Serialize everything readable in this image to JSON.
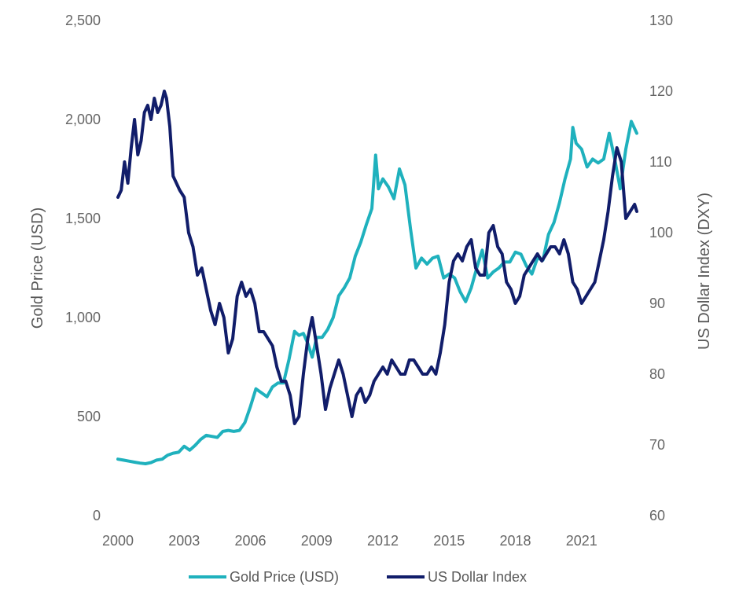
{
  "chart_data": {
    "type": "line",
    "title": "",
    "xlabel": "",
    "ylabel": "Gold Price (USD)",
    "y2label": "US Dollar Index (DXY)",
    "xlim": [
      2000,
      2023.5
    ],
    "ylim": [
      0,
      2500
    ],
    "y2lim": [
      60,
      130
    ],
    "x_ticks": [
      2000,
      2003,
      2006,
      2009,
      2012,
      2015,
      2018,
      2021
    ],
    "x_tick_labels": [
      "2000",
      "2003",
      "2006",
      "2009",
      "2012",
      "2015",
      "2018",
      "2021"
    ],
    "y_ticks": [
      0,
      500,
      1000,
      1500,
      2000,
      2500
    ],
    "y_tick_labels": [
      "0",
      "500",
      "1,000",
      "1,500",
      "2,000",
      "2,500"
    ],
    "y2_ticks": [
      60,
      70,
      80,
      90,
      100,
      110,
      120,
      130
    ],
    "y2_tick_labels": [
      "60",
      "70",
      "80",
      "90",
      "100",
      "110",
      "120",
      "130"
    ],
    "grid": false,
    "legend_position": "bottom",
    "series": [
      {
        "name": "Gold Price (USD)",
        "axis": "left",
        "color": "#1fb1bd",
        "x": [
          2000.0,
          2000.25,
          2000.5,
          2000.75,
          2001.0,
          2001.25,
          2001.5,
          2001.75,
          2002.0,
          2002.25,
          2002.5,
          2002.75,
          2003.0,
          2003.25,
          2003.5,
          2003.75,
          2004.0,
          2004.25,
          2004.5,
          2004.75,
          2005.0,
          2005.25,
          2005.5,
          2005.75,
          2006.0,
          2006.25,
          2006.5,
          2006.75,
          2007.0,
          2007.25,
          2007.5,
          2007.75,
          2008.0,
          2008.2,
          2008.4,
          2008.6,
          2008.8,
          2009.0,
          2009.25,
          2009.5,
          2009.75,
          2010.0,
          2010.25,
          2010.5,
          2010.75,
          2011.0,
          2011.25,
          2011.5,
          2011.67,
          2011.8,
          2012.0,
          2012.25,
          2012.5,
          2012.75,
          2013.0,
          2013.25,
          2013.5,
          2013.75,
          2014.0,
          2014.25,
          2014.5,
          2014.75,
          2015.0,
          2015.25,
          2015.5,
          2015.75,
          2016.0,
          2016.25,
          2016.5,
          2016.75,
          2017.0,
          2017.25,
          2017.5,
          2017.75,
          2018.0,
          2018.25,
          2018.5,
          2018.75,
          2019.0,
          2019.25,
          2019.5,
          2019.75,
          2020.0,
          2020.25,
          2020.5,
          2020.6,
          2020.75,
          2021.0,
          2021.25,
          2021.5,
          2021.75,
          2022.0,
          2022.25,
          2022.5,
          2022.75,
          2023.0,
          2023.25,
          2023.5
        ],
        "values": [
          285,
          280,
          275,
          270,
          265,
          262,
          268,
          280,
          285,
          305,
          315,
          320,
          350,
          330,
          355,
          385,
          405,
          400,
          395,
          425,
          430,
          425,
          430,
          470,
          550,
          640,
          620,
          600,
          650,
          670,
          670,
          790,
          930,
          910,
          920,
          870,
          800,
          900,
          900,
          940,
          1000,
          1110,
          1150,
          1200,
          1310,
          1380,
          1470,
          1550,
          1820,
          1650,
          1700,
          1660,
          1600,
          1750,
          1670,
          1450,
          1250,
          1300,
          1270,
          1300,
          1310,
          1200,
          1220,
          1200,
          1130,
          1080,
          1150,
          1250,
          1340,
          1200,
          1230,
          1250,
          1280,
          1280,
          1330,
          1320,
          1260,
          1220,
          1300,
          1290,
          1420,
          1480,
          1580,
          1700,
          1800,
          1960,
          1880,
          1850,
          1760,
          1800,
          1780,
          1800,
          1930,
          1800,
          1650,
          1850,
          1990,
          1930
        ]
      },
      {
        "name": "US Dollar Index",
        "axis": "right",
        "color": "#111d6a",
        "x": [
          2000.0,
          2000.15,
          2000.3,
          2000.45,
          2000.6,
          2000.75,
          2000.9,
          2001.05,
          2001.2,
          2001.35,
          2001.5,
          2001.65,
          2001.8,
          2001.95,
          2002.1,
          2002.2,
          2002.35,
          2002.5,
          2002.65,
          2002.8,
          2003.0,
          2003.2,
          2003.4,
          2003.6,
          2003.8,
          2004.0,
          2004.2,
          2004.4,
          2004.6,
          2004.8,
          2005.0,
          2005.2,
          2005.4,
          2005.6,
          2005.8,
          2006.0,
          2006.2,
          2006.4,
          2006.6,
          2006.8,
          2007.0,
          2007.2,
          2007.4,
          2007.6,
          2007.8,
          2008.0,
          2008.2,
          2008.4,
          2008.6,
          2008.8,
          2009.0,
          2009.2,
          2009.4,
          2009.6,
          2009.8,
          2010.0,
          2010.2,
          2010.4,
          2010.6,
          2010.8,
          2011.0,
          2011.2,
          2011.4,
          2011.6,
          2011.8,
          2012.0,
          2012.2,
          2012.4,
          2012.6,
          2012.8,
          2013.0,
          2013.2,
          2013.4,
          2013.6,
          2013.8,
          2014.0,
          2014.2,
          2014.4,
          2014.6,
          2014.8,
          2015.0,
          2015.2,
          2015.4,
          2015.6,
          2015.8,
          2016.0,
          2016.2,
          2016.4,
          2016.6,
          2016.8,
          2017.0,
          2017.2,
          2017.4,
          2017.6,
          2017.8,
          2018.0,
          2018.2,
          2018.4,
          2018.6,
          2018.8,
          2019.0,
          2019.2,
          2019.4,
          2019.6,
          2019.8,
          2020.0,
          2020.2,
          2020.4,
          2020.6,
          2020.8,
          2021.0,
          2021.2,
          2021.4,
          2021.6,
          2021.8,
          2022.0,
          2022.2,
          2022.4,
          2022.6,
          2022.8,
          2023.0,
          2023.2,
          2023.4,
          2023.5
        ],
        "values": [
          105,
          106,
          110,
          107,
          112,
          116,
          111,
          113,
          117,
          118,
          116,
          119,
          117,
          118,
          120,
          119,
          115,
          108,
          107,
          106,
          105,
          100,
          98,
          94,
          95,
          92,
          89,
          87,
          90,
          88,
          83,
          85,
          91,
          93,
          91,
          92,
          90,
          86,
          86,
          85,
          84,
          81,
          79,
          79,
          77,
          73,
          74,
          80,
          85,
          88,
          84,
          80,
          75,
          78,
          80,
          82,
          80,
          77,
          74,
          77,
          78,
          76,
          77,
          79,
          80,
          81,
          80,
          82,
          81,
          80,
          80,
          82,
          82,
          81,
          80,
          80,
          81,
          80,
          83,
          87,
          93,
          96,
          97,
          96,
          98,
          99,
          95,
          94,
          94,
          100,
          101,
          98,
          97,
          93,
          92,
          90,
          91,
          94,
          95,
          96,
          97,
          96,
          97,
          98,
          98,
          97,
          99,
          97,
          93,
          92,
          90,
          91,
          92,
          93,
          96,
          99,
          103,
          108,
          112,
          110,
          102,
          103,
          104,
          103
        ]
      }
    ]
  }
}
